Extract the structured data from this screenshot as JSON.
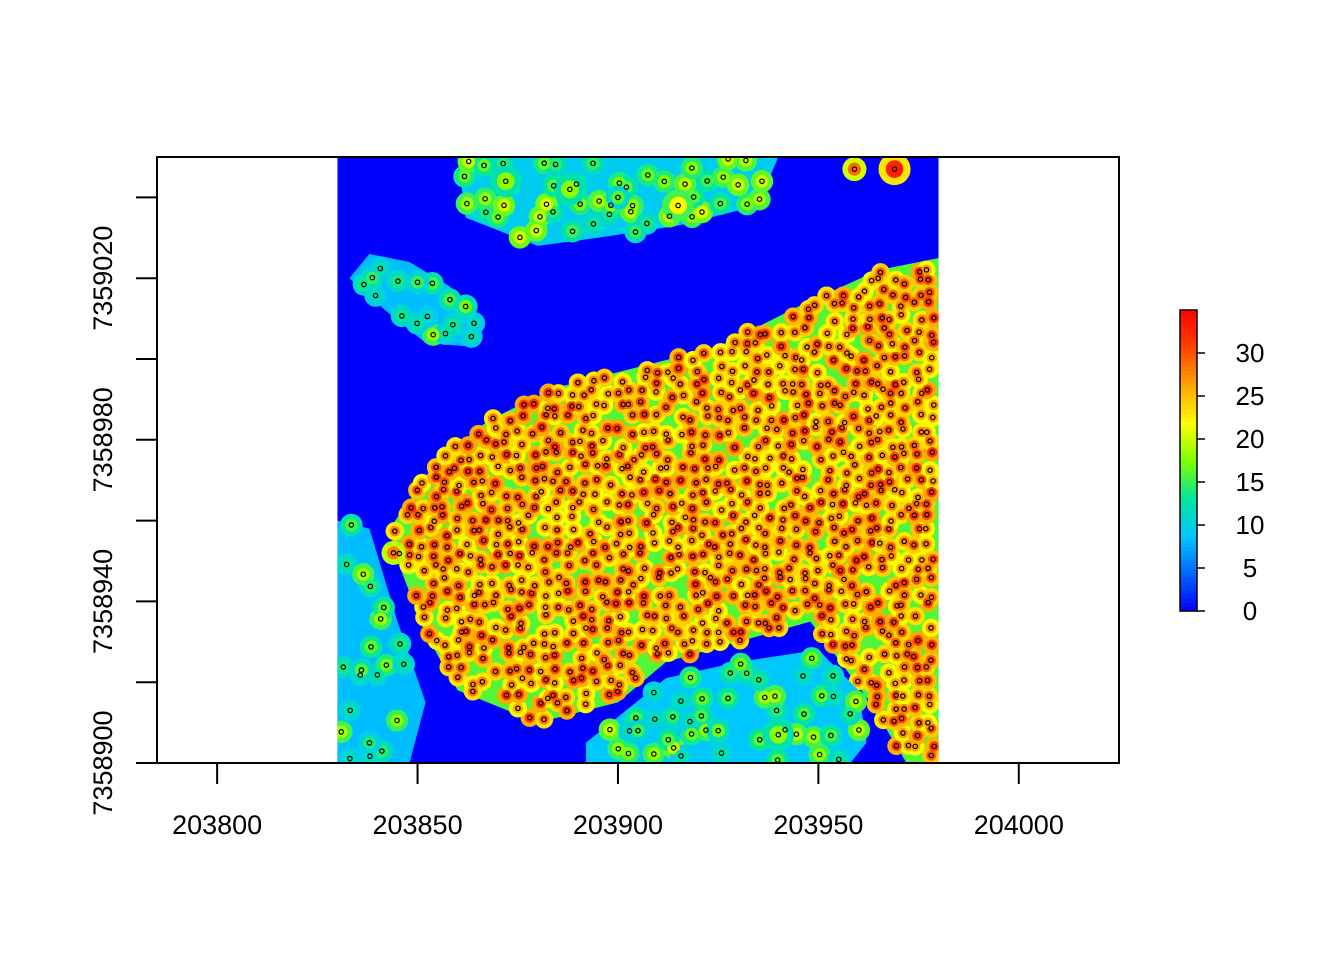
{
  "chart_data": {
    "type": "heatmap",
    "title": "",
    "xlabel": "",
    "ylabel": "",
    "xlim": [
      203785,
      204025
    ],
    "ylim": [
      7358900,
      7359050
    ],
    "raster_extent": {
      "x": [
        203830,
        203980
      ],
      "y": [
        7358900,
        7359050
      ]
    },
    "x_ticks": [
      {
        "value": 203800,
        "label": "203800"
      },
      {
        "value": 203850,
        "label": "203850"
      },
      {
        "value": 203900,
        "label": "203900"
      },
      {
        "value": 203950,
        "label": "203950"
      },
      {
        "value": 204000,
        "label": "204000"
      }
    ],
    "y_ticks": [
      {
        "value": 7358900,
        "label": "7358900"
      },
      {
        "value": 7358920,
        "label": ""
      },
      {
        "value": 7358940,
        "label": "7358940"
      },
      {
        "value": 7358960,
        "label": ""
      },
      {
        "value": 7358980,
        "label": "7358980"
      },
      {
        "value": 7359000,
        "label": ""
      },
      {
        "value": 7359020,
        "label": "7359020"
      },
      {
        "value": 7359040,
        "label": ""
      }
    ],
    "legend": {
      "position": "right",
      "range": [
        0,
        35
      ],
      "ticks": [
        {
          "value": 0,
          "label": "0"
        },
        {
          "value": 5,
          "label": "5"
        },
        {
          "value": 10,
          "label": "10"
        },
        {
          "value": 15,
          "label": "15"
        },
        {
          "value": 20,
          "label": "20"
        },
        {
          "value": 25,
          "label": "25"
        },
        {
          "value": 30,
          "label": "30"
        }
      ],
      "colors": [
        "#0000ff",
        "#0066ff",
        "#00c8ff",
        "#00e6a0",
        "#7fff00",
        "#ffff00",
        "#ffa500",
        "#ff4500",
        "#ff0000"
      ]
    },
    "regions": [
      {
        "kind": "dense-stand",
        "height": 29,
        "polygon": [
          [
            203848,
            7358965
          ],
          [
            203855,
            7358975
          ],
          [
            203868,
            7358985
          ],
          [
            203885,
            7358993
          ],
          [
            203905,
            7358998
          ],
          [
            203925,
            7359003
          ],
          [
            203945,
            7359013
          ],
          [
            203965,
            7359022
          ],
          [
            203980,
            7359025
          ],
          [
            203980,
            7358900
          ],
          [
            203972,
            7358900
          ],
          [
            203963,
            7358915
          ],
          [
            203948,
            7358935
          ],
          [
            203930,
            7358930
          ],
          [
            203912,
            7358925
          ],
          [
            203900,
            7358915
          ],
          [
            203880,
            7358910
          ],
          [
            203860,
            7358918
          ],
          [
            203852,
            7358932
          ],
          [
            203845,
            7358950
          ],
          [
            203843,
            7358958
          ]
        ]
      },
      {
        "kind": "sparse-stand",
        "height": 16,
        "polygon": [
          [
            203892,
            7358905
          ],
          [
            203912,
            7358921
          ],
          [
            203930,
            7358925
          ],
          [
            203950,
            7358928
          ],
          [
            203960,
            7358918
          ],
          [
            203962,
            7358905
          ],
          [
            203958,
            7358900
          ],
          [
            203892,
            7358900
          ]
        ]
      },
      {
        "kind": "sparse-stand",
        "height": 15,
        "polygon": [
          [
            203830,
            7358900
          ],
          [
            203848,
            7358900
          ],
          [
            203852,
            7358915
          ],
          [
            203845,
            7358935
          ],
          [
            203838,
            7358958
          ],
          [
            203830,
            7358960
          ]
        ]
      },
      {
        "kind": "sparse-stand",
        "height": 17,
        "polygon": [
          [
            203860,
            7359050
          ],
          [
            203940,
            7359050
          ],
          [
            203935,
            7359038
          ],
          [
            203915,
            7359033
          ],
          [
            203895,
            7359030
          ],
          [
            203880,
            7359028
          ],
          [
            203862,
            7359035
          ]
        ]
      },
      {
        "kind": "sparse-stand",
        "height": 15,
        "polygon": [
          [
            203838,
            7359026
          ],
          [
            203848,
            7359024
          ],
          [
            203858,
            7359018
          ],
          [
            203866,
            7359010
          ],
          [
            203864,
            7359003
          ],
          [
            203852,
            7359004
          ],
          [
            203842,
            7359012
          ],
          [
            203833,
            7359020
          ]
        ]
      }
    ],
    "patches": [
      {
        "x": 203969,
        "y": 7359047,
        "r": 4,
        "height": 33
      },
      {
        "x": 203959,
        "y": 7359047,
        "r": 3,
        "height": 29
      },
      {
        "x": 203844,
        "y": 7358952,
        "r": 3,
        "height": 28
      },
      {
        "x": 203915,
        "y": 7359038,
        "r": 4,
        "height": 22
      },
      {
        "x": 203872,
        "y": 7359044,
        "r": 4,
        "height": 18
      },
      {
        "x": 203888,
        "y": 7359042,
        "r": 4,
        "height": 18
      },
      {
        "x": 203900,
        "y": 7359040,
        "r": 3,
        "height": 16
      },
      {
        "x": 203850,
        "y": 7359019,
        "r": 3,
        "height": 15
      },
      {
        "x": 203862,
        "y": 7359013,
        "r": 3,
        "height": 17
      },
      {
        "x": 203836,
        "y": 7358923,
        "r": 3,
        "height": 16
      },
      {
        "x": 203838,
        "y": 7358905,
        "r": 3,
        "height": 14
      },
      {
        "x": 203940,
        "y": 7358907,
        "r": 4,
        "height": 18
      },
      {
        "x": 203925,
        "y": 7358908,
        "r": 3,
        "height": 17
      },
      {
        "x": 203905,
        "y": 7358908,
        "r": 3,
        "height": 15
      }
    ],
    "tree_tops": {
      "symbol": "o",
      "color": "#000000"
    }
  }
}
